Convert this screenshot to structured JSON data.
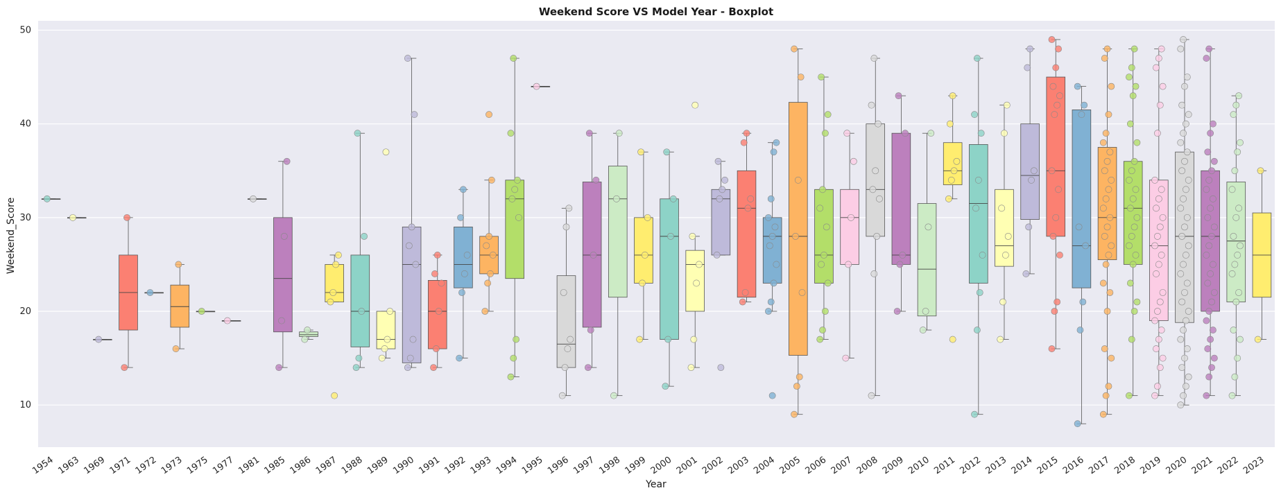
{
  "chart_data": {
    "type": "box",
    "title": "Weekend Score VS Model Year - Boxplot",
    "xlabel": "Year",
    "ylabel": "Weekend_Score",
    "ylim": [
      5.5,
      51
    ],
    "yticks": [
      10,
      20,
      30,
      40,
      50
    ],
    "grid": true,
    "background": "#eaeaf2",
    "palette": [
      "#8dd3c7",
      "#ffffb3",
      "#bebada",
      "#fb8072",
      "#80b1d3",
      "#fdb462",
      "#b3de69",
      "#fccde5",
      "#d9d9d9",
      "#bc80bd",
      "#ccebc5",
      "#ffed6f"
    ],
    "categories": [
      "1954",
      "1963",
      "1969",
      "1971",
      "1972",
      "1973",
      "1975",
      "1977",
      "1981",
      "1985",
      "1986",
      "1987",
      "1988",
      "1989",
      "1990",
      "1991",
      "1992",
      "1993",
      "1994",
      "1995",
      "1996",
      "1997",
      "1998",
      "1999",
      "2000",
      "2001",
      "2002",
      "2003",
      "2004",
      "2005",
      "2006",
      "2007",
      "2008",
      "2009",
      "2010",
      "2011",
      "2012",
      "2013",
      "2014",
      "2015",
      "2016",
      "2017",
      "2018",
      "2019",
      "2020",
      "2021",
      "2022",
      "2023"
    ],
    "boxes": [
      {
        "year": "1954",
        "q1": 32,
        "median": 32,
        "q3": 32,
        "whisker_low": 32,
        "whisker_high": 32,
        "fliers": [],
        "points": [
          32
        ]
      },
      {
        "year": "1963",
        "q1": 30,
        "median": 30,
        "q3": 30,
        "whisker_low": 30,
        "whisker_high": 30,
        "fliers": [],
        "points": [
          30
        ]
      },
      {
        "year": "1969",
        "q1": 17,
        "median": 17,
        "q3": 17,
        "whisker_low": 17,
        "whisker_high": 17,
        "fliers": [],
        "points": [
          17
        ]
      },
      {
        "year": "1971",
        "q1": 18,
        "median": 22,
        "q3": 26,
        "whisker_low": 14,
        "whisker_high": 30,
        "fliers": [],
        "points": [
          14,
          30
        ]
      },
      {
        "year": "1972",
        "q1": 22,
        "median": 22,
        "q3": 22,
        "whisker_low": 22,
        "whisker_high": 22,
        "fliers": [],
        "points": [
          22
        ]
      },
      {
        "year": "1973",
        "q1": 18.3,
        "median": 20.5,
        "q3": 22.8,
        "whisker_low": 16,
        "whisker_high": 25,
        "fliers": [],
        "points": [
          16,
          25
        ]
      },
      {
        "year": "1975",
        "q1": 20,
        "median": 20,
        "q3": 20,
        "whisker_low": 20,
        "whisker_high": 20,
        "fliers": [],
        "points": [
          20
        ]
      },
      {
        "year": "1977",
        "q1": 19,
        "median": 19,
        "q3": 19,
        "whisker_low": 19,
        "whisker_high": 19,
        "fliers": [],
        "points": [
          19
        ]
      },
      {
        "year": "1981",
        "q1": 32,
        "median": 32,
        "q3": 32,
        "whisker_low": 32,
        "whisker_high": 32,
        "fliers": [],
        "points": [
          32
        ]
      },
      {
        "year": "1985",
        "q1": 17.8,
        "median": 23.5,
        "q3": 30,
        "whisker_low": 14,
        "whisker_high": 36,
        "fliers": [],
        "points": [
          14,
          19,
          28,
          36
        ]
      },
      {
        "year": "1986",
        "q1": 17.3,
        "median": 17.5,
        "q3": 17.8,
        "whisker_low": 17,
        "whisker_high": 18,
        "fliers": [],
        "points": [
          17,
          18
        ]
      },
      {
        "year": "1987",
        "q1": 21,
        "median": 22,
        "q3": 25,
        "whisker_low": 21,
        "whisker_high": 26,
        "fliers": [
          11
        ],
        "points": [
          21,
          22,
          25,
          26
        ]
      },
      {
        "year": "1988",
        "q1": 16.2,
        "median": 20,
        "q3": 26,
        "whisker_low": 14,
        "whisker_high": 39,
        "fliers": [],
        "points": [
          14,
          15,
          20,
          28,
          39
        ]
      },
      {
        "year": "1989",
        "q1": 16,
        "median": 17,
        "q3": 20,
        "whisker_low": 15,
        "whisker_high": 20,
        "fliers": [
          37
        ],
        "points": [
          15,
          16,
          17,
          20
        ]
      },
      {
        "year": "1990",
        "q1": 14.5,
        "median": 25,
        "q3": 29,
        "whisker_low": 14,
        "whisker_high": 47,
        "fliers": [],
        "points": [
          14,
          15,
          17,
          25,
          27,
          29,
          41,
          47
        ]
      },
      {
        "year": "1991",
        "q1": 16,
        "median": 20,
        "q3": 23.3,
        "whisker_low": 14,
        "whisker_high": 26,
        "fliers": [],
        "points": [
          14,
          16,
          20,
          23,
          24,
          26
        ]
      },
      {
        "year": "1992",
        "q1": 22.5,
        "median": 25,
        "q3": 29,
        "whisker_low": 15,
        "whisker_high": 33,
        "fliers": [],
        "points": [
          15,
          22,
          24,
          26,
          30,
          33
        ]
      },
      {
        "year": "1993",
        "q1": 24,
        "median": 26,
        "q3": 28,
        "whisker_low": 20,
        "whisker_high": 34,
        "fliers": [
          41
        ],
        "points": [
          20,
          23,
          24,
          26,
          27,
          28,
          34
        ]
      },
      {
        "year": "1994",
        "q1": 23.5,
        "median": 32,
        "q3": 34,
        "whisker_low": 13,
        "whisker_high": 47,
        "fliers": [],
        "points": [
          13,
          15,
          17,
          30,
          32,
          33,
          34,
          39,
          47
        ]
      },
      {
        "year": "1995",
        "q1": 44,
        "median": 44,
        "q3": 44,
        "whisker_low": 44,
        "whisker_high": 44,
        "fliers": [],
        "points": [
          44
        ]
      },
      {
        "year": "1996",
        "q1": 14,
        "median": 16.5,
        "q3": 23.8,
        "whisker_low": 11,
        "whisker_high": 31,
        "fliers": [],
        "points": [
          11,
          14,
          16,
          17,
          22,
          29,
          31
        ]
      },
      {
        "year": "1997",
        "q1": 18.3,
        "median": 26,
        "q3": 33.8,
        "whisker_low": 14,
        "whisker_high": 39,
        "fliers": [],
        "points": [
          14,
          18,
          26,
          34,
          39
        ]
      },
      {
        "year": "1998",
        "q1": 21.5,
        "median": 32,
        "q3": 35.5,
        "whisker_low": 11,
        "whisker_high": 39,
        "fliers": [],
        "points": [
          11,
          32,
          39
        ]
      },
      {
        "year": "1999",
        "q1": 23,
        "median": 26,
        "q3": 30,
        "whisker_low": 17,
        "whisker_high": 37,
        "fliers": [],
        "points": [
          17,
          23,
          26,
          30,
          37
        ]
      },
      {
        "year": "2000",
        "q1": 17,
        "median": 28,
        "q3": 32,
        "whisker_low": 12,
        "whisker_high": 37,
        "fliers": [],
        "points": [
          12,
          17,
          28,
          32,
          37
        ]
      },
      {
        "year": "2001",
        "q1": 20,
        "median": 25,
        "q3": 26.5,
        "whisker_low": 14,
        "whisker_high": 28,
        "fliers": [
          42
        ],
        "points": [
          14,
          17,
          23,
          25,
          28
        ]
      },
      {
        "year": "2002",
        "q1": 26,
        "median": 32,
        "q3": 33,
        "whisker_low": 26,
        "whisker_high": 36,
        "fliers": [
          14
        ],
        "points": [
          26,
          32,
          33,
          34,
          36
        ]
      },
      {
        "year": "2003",
        "q1": 21.5,
        "median": 31,
        "q3": 35,
        "whisker_low": 21,
        "whisker_high": 39,
        "fliers": [],
        "points": [
          21,
          22,
          31,
          32,
          38,
          39
        ]
      },
      {
        "year": "2004",
        "q1": 23,
        "median": 28,
        "q3": 30,
        "whisker_low": 20,
        "whisker_high": 38,
        "fliers": [
          11
        ],
        "points": [
          20,
          21,
          23,
          25,
          27,
          28,
          29,
          30,
          32,
          37,
          38
        ]
      },
      {
        "year": "2005",
        "q1": 15.3,
        "median": 28,
        "q3": 42.3,
        "whisker_low": 9,
        "whisker_high": 48,
        "fliers": [],
        "points": [
          9,
          12,
          13,
          22,
          28,
          34,
          45,
          48
        ]
      },
      {
        "year": "2006",
        "q1": 23,
        "median": 26,
        "q3": 33,
        "whisker_low": 17,
        "whisker_high": 45,
        "fliers": [],
        "points": [
          17,
          18,
          20,
          23,
          25,
          26,
          29,
          31,
          33,
          39,
          41,
          45
        ]
      },
      {
        "year": "2007",
        "q1": 25,
        "median": 30,
        "q3": 33,
        "whisker_low": 15,
        "whisker_high": 39,
        "fliers": [],
        "points": [
          15,
          25,
          30,
          36,
          39
        ]
      },
      {
        "year": "2008",
        "q1": 28,
        "median": 33,
        "q3": 40,
        "whisker_low": 11,
        "whisker_high": 47,
        "fliers": [],
        "points": [
          11,
          24,
          28,
          32,
          33,
          35,
          40,
          42,
          47
        ]
      },
      {
        "year": "2009",
        "q1": 25,
        "median": 26,
        "q3": 39,
        "whisker_low": 20,
        "whisker_high": 43,
        "fliers": [],
        "points": [
          20,
          25,
          26,
          39,
          43
        ]
      },
      {
        "year": "2010",
        "q1": 19.5,
        "median": 24.5,
        "q3": 31.5,
        "whisker_low": 18,
        "whisker_high": 39,
        "fliers": [],
        "points": [
          18,
          20,
          29,
          39
        ]
      },
      {
        "year": "2011",
        "q1": 33.5,
        "median": 35,
        "q3": 38,
        "whisker_low": 32,
        "whisker_high": 43,
        "fliers": [
          17
        ],
        "points": [
          32,
          34,
          35,
          36,
          40,
          43
        ]
      },
      {
        "year": "2012",
        "q1": 23,
        "median": 31.5,
        "q3": 37.8,
        "whisker_low": 9,
        "whisker_high": 47,
        "fliers": [],
        "points": [
          9,
          18,
          22,
          26,
          31,
          34,
          39,
          41,
          47
        ]
      },
      {
        "year": "2013",
        "q1": 24.8,
        "median": 27,
        "q3": 33,
        "whisker_low": 17,
        "whisker_high": 42,
        "fliers": [],
        "points": [
          17,
          21,
          26,
          28,
          31,
          39,
          42
        ]
      },
      {
        "year": "2014",
        "q1": 29.8,
        "median": 34.5,
        "q3": 40,
        "whisker_low": 24,
        "whisker_high": 48,
        "fliers": [],
        "points": [
          24,
          29,
          34,
          35,
          46,
          48
        ]
      },
      {
        "year": "2015",
        "q1": 28,
        "median": 35,
        "q3": 45,
        "whisker_low": 16,
        "whisker_high": 49,
        "fliers": [],
        "points": [
          16,
          20,
          21,
          26,
          28,
          30,
          33,
          35,
          41,
          42,
          43,
          44,
          46,
          48,
          49
        ]
      },
      {
        "year": "2016",
        "q1": 22.5,
        "median": 27,
        "q3": 41.5,
        "whisker_low": 8,
        "whisker_high": 44,
        "fliers": [],
        "points": [
          8,
          18,
          21,
          27,
          29,
          41,
          42,
          44
        ]
      },
      {
        "year": "2017",
        "q1": 25.5,
        "median": 30,
        "q3": 37.5,
        "whisker_low": 9,
        "whisker_high": 48,
        "fliers": [],
        "points": [
          9,
          11,
          12,
          15,
          16,
          20,
          22,
          23,
          25,
          26,
          27,
          28,
          29,
          30,
          31,
          32,
          33,
          34,
          35,
          36,
          37,
          38,
          39,
          41,
          44,
          47,
          48
        ]
      },
      {
        "year": "2018",
        "q1": 25,
        "median": 31,
        "q3": 36,
        "whisker_low": 11,
        "whisker_high": 48,
        "fliers": [],
        "points": [
          11,
          17,
          20,
          21,
          23,
          25,
          26,
          27,
          28,
          29,
          30,
          31,
          32,
          33,
          34,
          35,
          36,
          38,
          40,
          43,
          44,
          45,
          46,
          48
        ]
      },
      {
        "year": "2019",
        "q1": 19,
        "median": 27,
        "q3": 34,
        "whisker_low": 11,
        "whisker_high": 48,
        "fliers": [],
        "points": [
          11,
          12,
          14,
          15,
          16,
          17,
          18,
          19,
          20,
          21,
          22,
          24,
          25,
          26,
          27,
          28,
          29,
          30,
          31,
          32,
          33,
          34,
          39,
          42,
          44,
          46,
          47,
          48
        ]
      },
      {
        "year": "2020",
        "q1": 18.8,
        "median": 28,
        "q3": 37,
        "whisker_low": 10,
        "whisker_high": 49,
        "fliers": [],
        "points": [
          10,
          11,
          12,
          13,
          14,
          15,
          16,
          17,
          18,
          19,
          20,
          21,
          22,
          23,
          24,
          25,
          26,
          27,
          28,
          29,
          30,
          31,
          32,
          33,
          34,
          35,
          36,
          37,
          38,
          39,
          40,
          41,
          42,
          44,
          45,
          48,
          49
        ]
      },
      {
        "year": "2021",
        "q1": 20,
        "median": 28,
        "q3": 35,
        "whisker_low": 11,
        "whisker_high": 48,
        "fliers": [],
        "points": [
          11,
          13,
          14,
          15,
          16,
          17,
          18,
          19,
          20,
          21,
          22,
          23,
          24,
          25,
          26,
          27,
          28,
          29,
          30,
          31,
          32,
          33,
          34,
          35,
          36,
          37,
          39,
          40,
          47,
          48
        ]
      },
      {
        "year": "2022",
        "q1": 21,
        "median": 27.5,
        "q3": 33.8,
        "whisker_low": 11,
        "whisker_high": 43,
        "fliers": [],
        "points": [
          11,
          13,
          15,
          17,
          18,
          21,
          22,
          24,
          25,
          26,
          27,
          28,
          30,
          31,
          33,
          35,
          37,
          38,
          41,
          42,
          43
        ]
      },
      {
        "year": "2023",
        "q1": 21.5,
        "median": 26,
        "q3": 30.5,
        "whisker_low": 17,
        "whisker_high": 35,
        "fliers": [],
        "points": [
          17,
          35
        ]
      }
    ]
  }
}
